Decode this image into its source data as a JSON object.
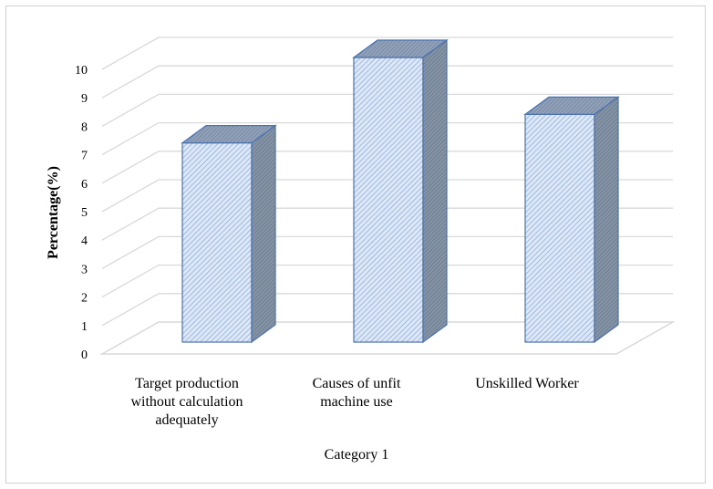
{
  "chart_data": {
    "type": "bar",
    "style": "3d-clustered-column",
    "categories": [
      [
        "Target production",
        "without calculation",
        "adequately"
      ],
      [
        "Causes of unfit",
        "machine use"
      ],
      [
        "Unskilled Worker"
      ]
    ],
    "values": [
      7,
      10,
      8
    ],
    "xlabel": "Category 1",
    "ylabel": "Percentage(%)",
    "ylim": [
      0,
      10
    ],
    "yticks": [
      "0",
      "1",
      "2",
      "3",
      "4",
      "5",
      "6",
      "7",
      "8",
      "9",
      "10"
    ],
    "grid": true,
    "legend": "none",
    "colors": {
      "bar_fill": "#dce8f7",
      "bar_hatch": "#5b7fb5",
      "bar_side": "#6f7f94",
      "bar_stroke": "#4a72b0",
      "gridline": "#d9d9d9",
      "floor": "#d9d9d9"
    }
  }
}
